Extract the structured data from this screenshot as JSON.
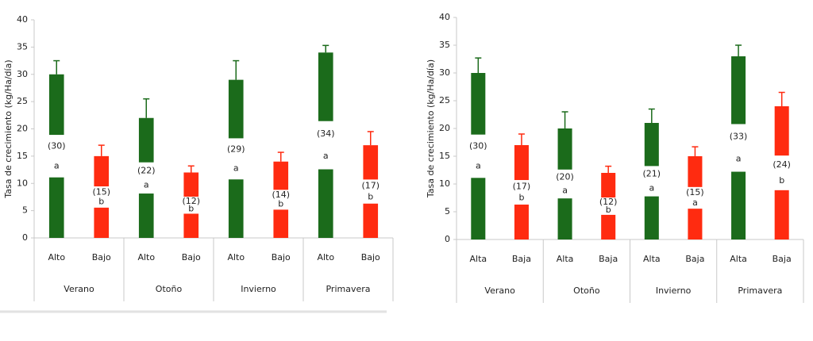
{
  "chart_data": [
    {
      "type": "bar",
      "y_label": "Tasa de crecimiento (kg/Ha/día)",
      "categories": [
        "Alto",
        "Bajo",
        "Alto",
        "Bajo",
        "Alto",
        "Bajo",
        "Alto",
        "Bajo"
      ],
      "groups": [
        "Verano",
        "Otoño",
        "Invierno",
        "Primavera"
      ],
      "values": [
        30,
        15,
        22,
        12,
        29,
        14,
        34,
        17
      ],
      "value_labels": [
        "(30)",
        "(15)",
        "(22)",
        "(12)",
        "(29)",
        "(14)",
        "(34)",
        "(17)"
      ],
      "errors": [
        2.5,
        2,
        3.5,
        1.2,
        3.5,
        1.7,
        1.3,
        2.5
      ],
      "letters": [
        "a",
        "b",
        "a",
        "b",
        "a",
        "b",
        "a",
        "b"
      ],
      "colors": [
        "#1b6b1b",
        "#ff2b10"
      ],
      "ylim": [
        0,
        40
      ],
      "yticks": [
        0,
        5,
        10,
        15,
        20,
        25,
        30,
        35,
        40
      ]
    },
    {
      "type": "bar",
      "y_label": "Tasa de crecimiento (kg/Ha/día)",
      "categories": [
        "Alta",
        "Baja",
        "Alta",
        "Baja",
        "Alta",
        "Baja",
        "Alta",
        "Baja"
      ],
      "groups": [
        "Verano",
        "Otoño",
        "Invierno",
        "Primavera"
      ],
      "values": [
        30,
        17,
        20,
        12,
        21,
        15,
        33,
        24
      ],
      "value_labels": [
        "(30)",
        "(17)",
        "(20)",
        "(12)",
        "(21)",
        "(15)",
        "(33)",
        "(24)"
      ],
      "errors": [
        2.7,
        2,
        3,
        1.2,
        2.5,
        1.7,
        2,
        2.5
      ],
      "letters": [
        "a",
        "b",
        "a",
        "b",
        "a",
        "a",
        "a",
        "b"
      ],
      "colors": [
        "#1b6b1b",
        "#ff2b10"
      ],
      "ylim": [
        0,
        40
      ],
      "yticks": [
        0,
        5,
        10,
        15,
        20,
        25,
        30,
        35,
        40
      ]
    }
  ]
}
